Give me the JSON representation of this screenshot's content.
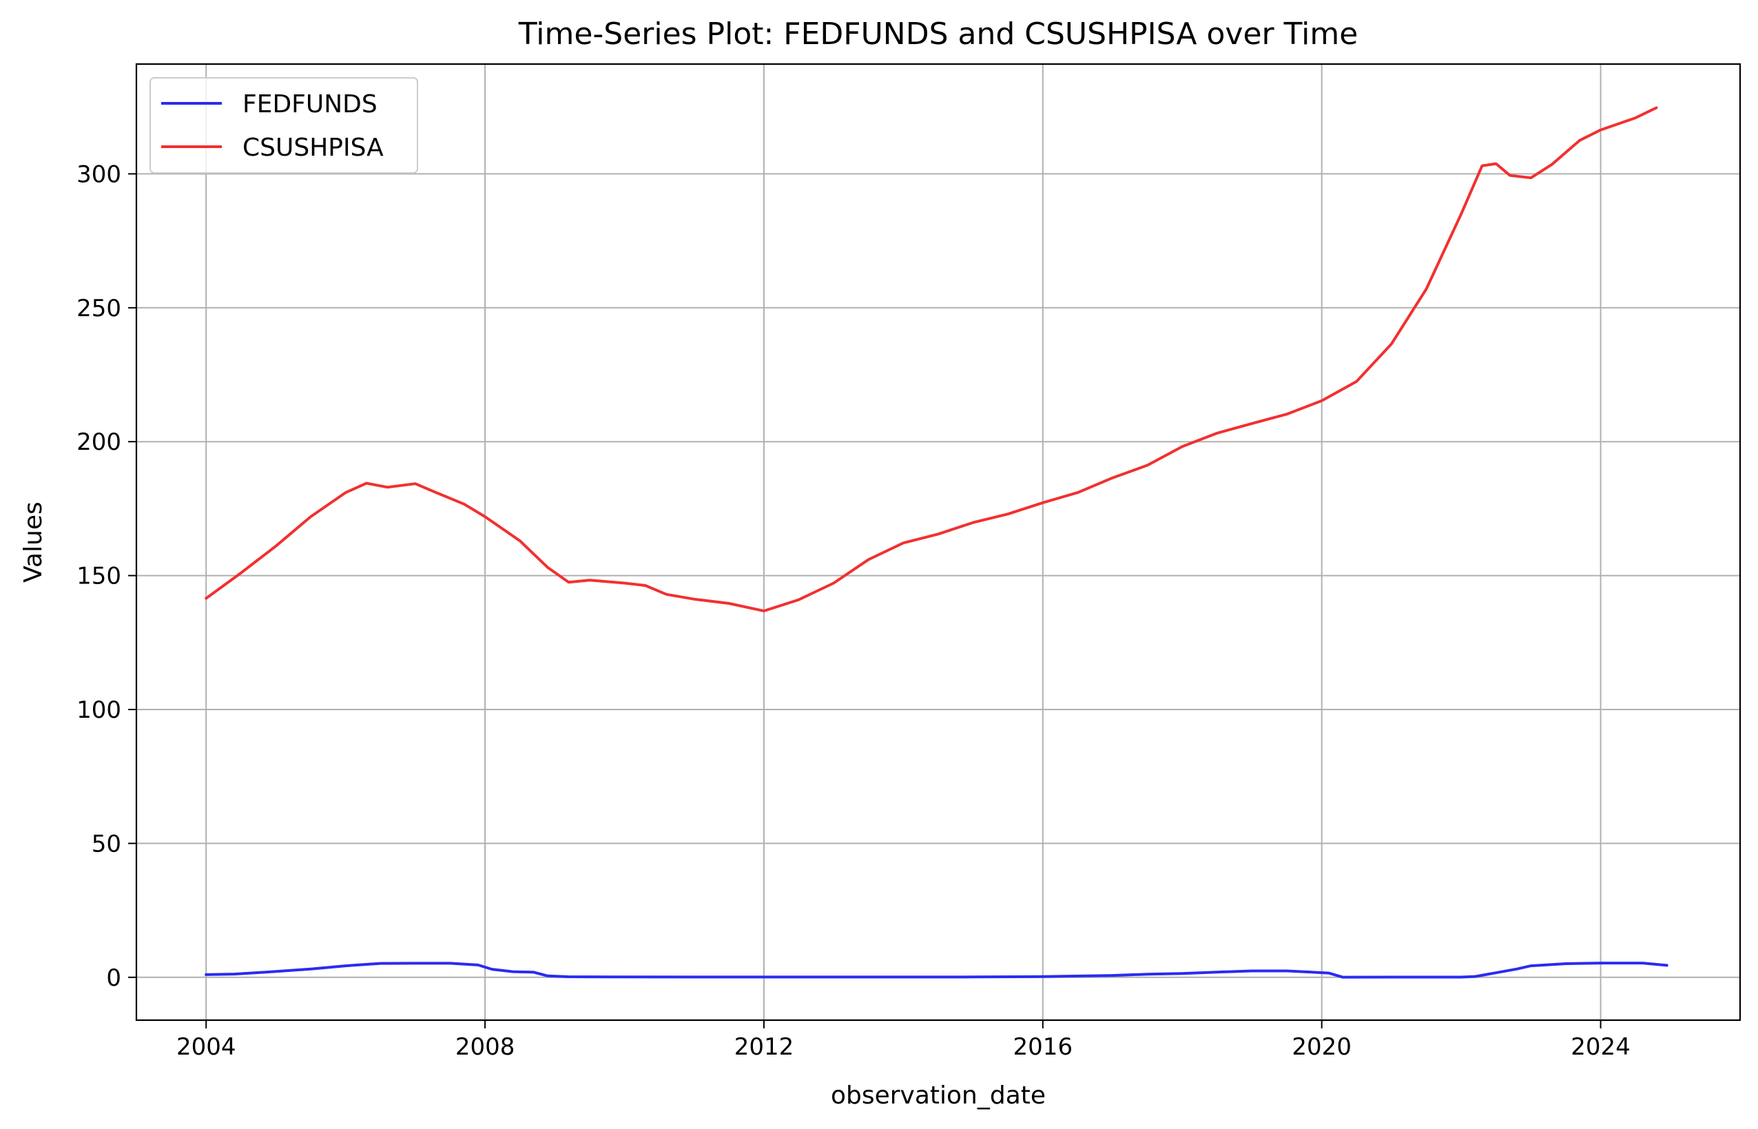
{
  "chart_data": {
    "type": "line",
    "title": "Time-Series Plot: FEDFUNDS and CSUSHPISA over Time",
    "xlabel": "observation_date",
    "ylabel": "Values",
    "xlim": [
      2003.0,
      2026.0
    ],
    "ylim": [
      -16,
      341
    ],
    "x_ticks": [
      2004,
      2008,
      2012,
      2016,
      2020,
      2024
    ],
    "y_ticks": [
      0,
      50,
      100,
      150,
      200,
      250,
      300
    ],
    "grid": true,
    "legend_position": "upper-left",
    "series": [
      {
        "name": "FEDFUNDS",
        "color": "#2b2bf2",
        "x": [
          2004.0,
          2004.4,
          2004.9,
          2005.5,
          2006.0,
          2006.5,
          2007.0,
          2007.5,
          2007.9,
          2008.1,
          2008.4,
          2008.7,
          2008.9,
          2009.2,
          2010.0,
          2011.0,
          2012.0,
          2013.0,
          2014.0,
          2015.0,
          2015.9,
          2016.3,
          2017.0,
          2017.5,
          2018.0,
          2018.5,
          2019.0,
          2019.5,
          2019.8,
          2020.1,
          2020.3,
          2021.0,
          2022.0,
          2022.2,
          2022.5,
          2022.8,
          2023.0,
          2023.5,
          2024.0,
          2024.6,
          2024.95
        ],
        "y": [
          1.0,
          1.2,
          2.0,
          3.1,
          4.3,
          5.2,
          5.25,
          5.25,
          4.6,
          3.0,
          2.1,
          1.9,
          0.5,
          0.2,
          0.12,
          0.1,
          0.1,
          0.11,
          0.09,
          0.13,
          0.24,
          0.38,
          0.7,
          1.15,
          1.45,
          1.95,
          2.4,
          2.4,
          2.0,
          1.6,
          0.05,
          0.08,
          0.08,
          0.3,
          1.7,
          3.1,
          4.3,
          5.1,
          5.33,
          5.33,
          4.48
        ]
      },
      {
        "name": "CSUSHPISA",
        "color": "#f23030",
        "x": [
          2004.0,
          2004.5,
          2005.0,
          2005.5,
          2006.0,
          2006.3,
          2006.6,
          2007.0,
          2007.3,
          2007.7,
          2008.0,
          2008.5,
          2008.9,
          2009.2,
          2009.5,
          2010.0,
          2010.3,
          2010.6,
          2011.0,
          2011.5,
          2012.0,
          2012.5,
          2013.0,
          2013.5,
          2014.0,
          2014.5,
          2015.0,
          2015.5,
          2016.0,
          2016.5,
          2017.0,
          2017.5,
          2018.0,
          2018.5,
          2019.0,
          2019.5,
          2020.0,
          2020.5,
          2021.0,
          2021.5,
          2022.0,
          2022.3,
          2022.5,
          2022.7,
          2023.0,
          2023.3,
          2023.7,
          2024.0,
          2024.5,
          2024.8
        ],
        "y": [
          141.5,
          151,
          161,
          172,
          181,
          184.5,
          183,
          184.3,
          181,
          176.7,
          172,
          163,
          153,
          147.5,
          148.3,
          147.2,
          146.3,
          143,
          141.2,
          139.6,
          136.8,
          141,
          147.2,
          156,
          162.2,
          165.5,
          169.8,
          173,
          177.2,
          181,
          186.5,
          191.2,
          198.2,
          203.2,
          206.8,
          210.3,
          215.3,
          222.5,
          236.5,
          257,
          285,
          303,
          303.8,
          299.4,
          298.5,
          303.5,
          312.5,
          316.4,
          320.9,
          324.7
        ]
      }
    ]
  }
}
